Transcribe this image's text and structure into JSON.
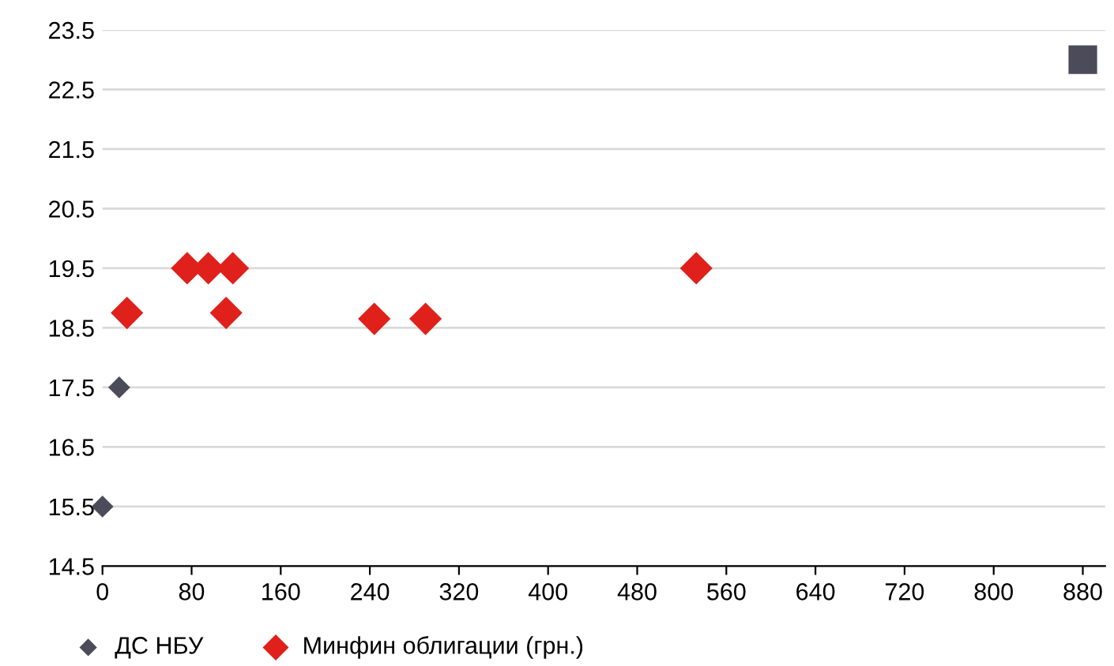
{
  "chart_data": {
    "type": "scatter",
    "series": [
      {
        "name": "ДС НБУ",
        "color": "#4b4b5a",
        "marker": "diamond",
        "x": [
          0,
          15
        ],
        "values": [
          15.5,
          17.5
        ]
      },
      {
        "name": "Минфин облигации (грн.)",
        "color": "#e0201b",
        "marker": "diamond",
        "x": [
          22,
          76,
          95,
          111,
          117,
          244,
          290,
          533
        ],
        "values": [
          18.75,
          19.5,
          19.5,
          18.75,
          19.5,
          18.65,
          18.65,
          19.5
        ]
      },
      {
        "color": "#4b4b5a",
        "marker": "square",
        "x": [
          880
        ],
        "values": [
          23.0
        ]
      }
    ],
    "xlim": [
      0,
      900
    ],
    "xticks": [
      0,
      80,
      160,
      240,
      320,
      400,
      480,
      560,
      640,
      720,
      800,
      880
    ],
    "ylim": [
      14.5,
      23.5
    ],
    "yticks": [
      14.5,
      15.5,
      16.5,
      17.5,
      18.5,
      19.5,
      20.5,
      21.5,
      22.5,
      23.5
    ],
    "grid": "y",
    "legend": "bottom"
  }
}
